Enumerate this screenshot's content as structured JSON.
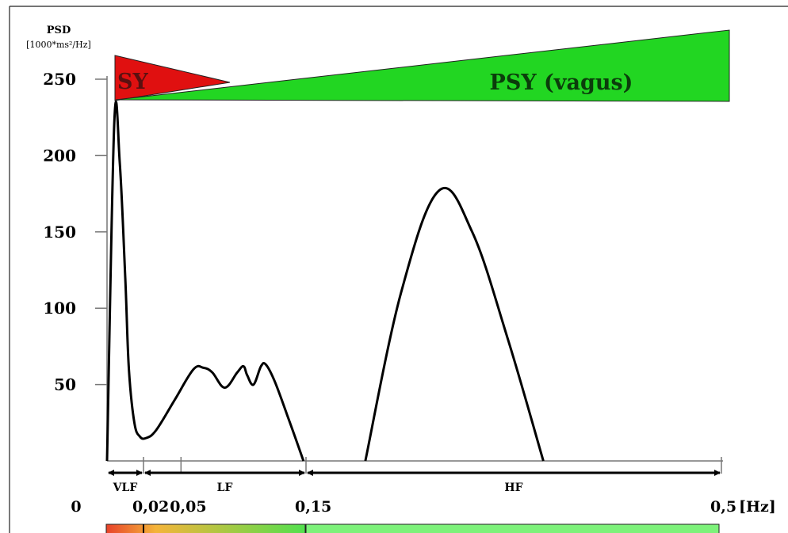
{
  "chart_data": {
    "type": "line",
    "ylabel": "PSD",
    "yunit": "[1000*ms²/Hz]",
    "xunit": "[Hz]",
    "ylim": [
      0,
      250
    ],
    "yticks": [
      "50",
      "100",
      "150",
      "200",
      "250"
    ],
    "xticks": [
      {
        "label": "0",
        "value": 0
      },
      {
        "label": "0,02",
        "value": 0.02
      },
      {
        "label": "0,05",
        "value": 0.05
      },
      {
        "label": "0,15",
        "value": 0.15
      },
      {
        "label": "0,5",
        "value": 0.5
      }
    ],
    "bands": [
      {
        "name": "VLF",
        "from": 0.0,
        "to": 0.02
      },
      {
        "name": "LF",
        "from": 0.02,
        "to": 0.15
      },
      {
        "name": "HF",
        "from": 0.15,
        "to": 0.5
      }
    ],
    "series": [
      {
        "x": [
          0.0,
          0.004,
          0.007,
          0.01,
          0.012,
          0.015,
          0.018,
          0.022,
          0.03,
          0.045,
          0.06,
          0.068,
          0.075,
          0.085,
          0.095,
          0.1,
          0.103,
          0.108,
          0.114,
          0.118,
          0.125,
          0.135,
          0.148,
          0.2,
          0.23,
          0.262,
          0.29,
          0.32,
          0.35
        ],
        "y": [
          0,
          222,
          195,
          120,
          60,
          25,
          16,
          15,
          20,
          40,
          60,
          61,
          58,
          48,
          58,
          62,
          56,
          50,
          62,
          63,
          52,
          30,
          0,
          0,
          110,
          177,
          150,
          80,
          0
        ]
      }
    ],
    "annotations": {
      "sy": "SY",
      "psy": "PSY (vagus)"
    },
    "colors": {
      "sy": "#e01010",
      "psy": "#22d622",
      "band_grad_start": "#e8422a",
      "band_grad_mid": "#f4b43a",
      "band_grad_end": "#52e04e",
      "hf_bar": "#7df27a",
      "curve": "#000000"
    }
  }
}
